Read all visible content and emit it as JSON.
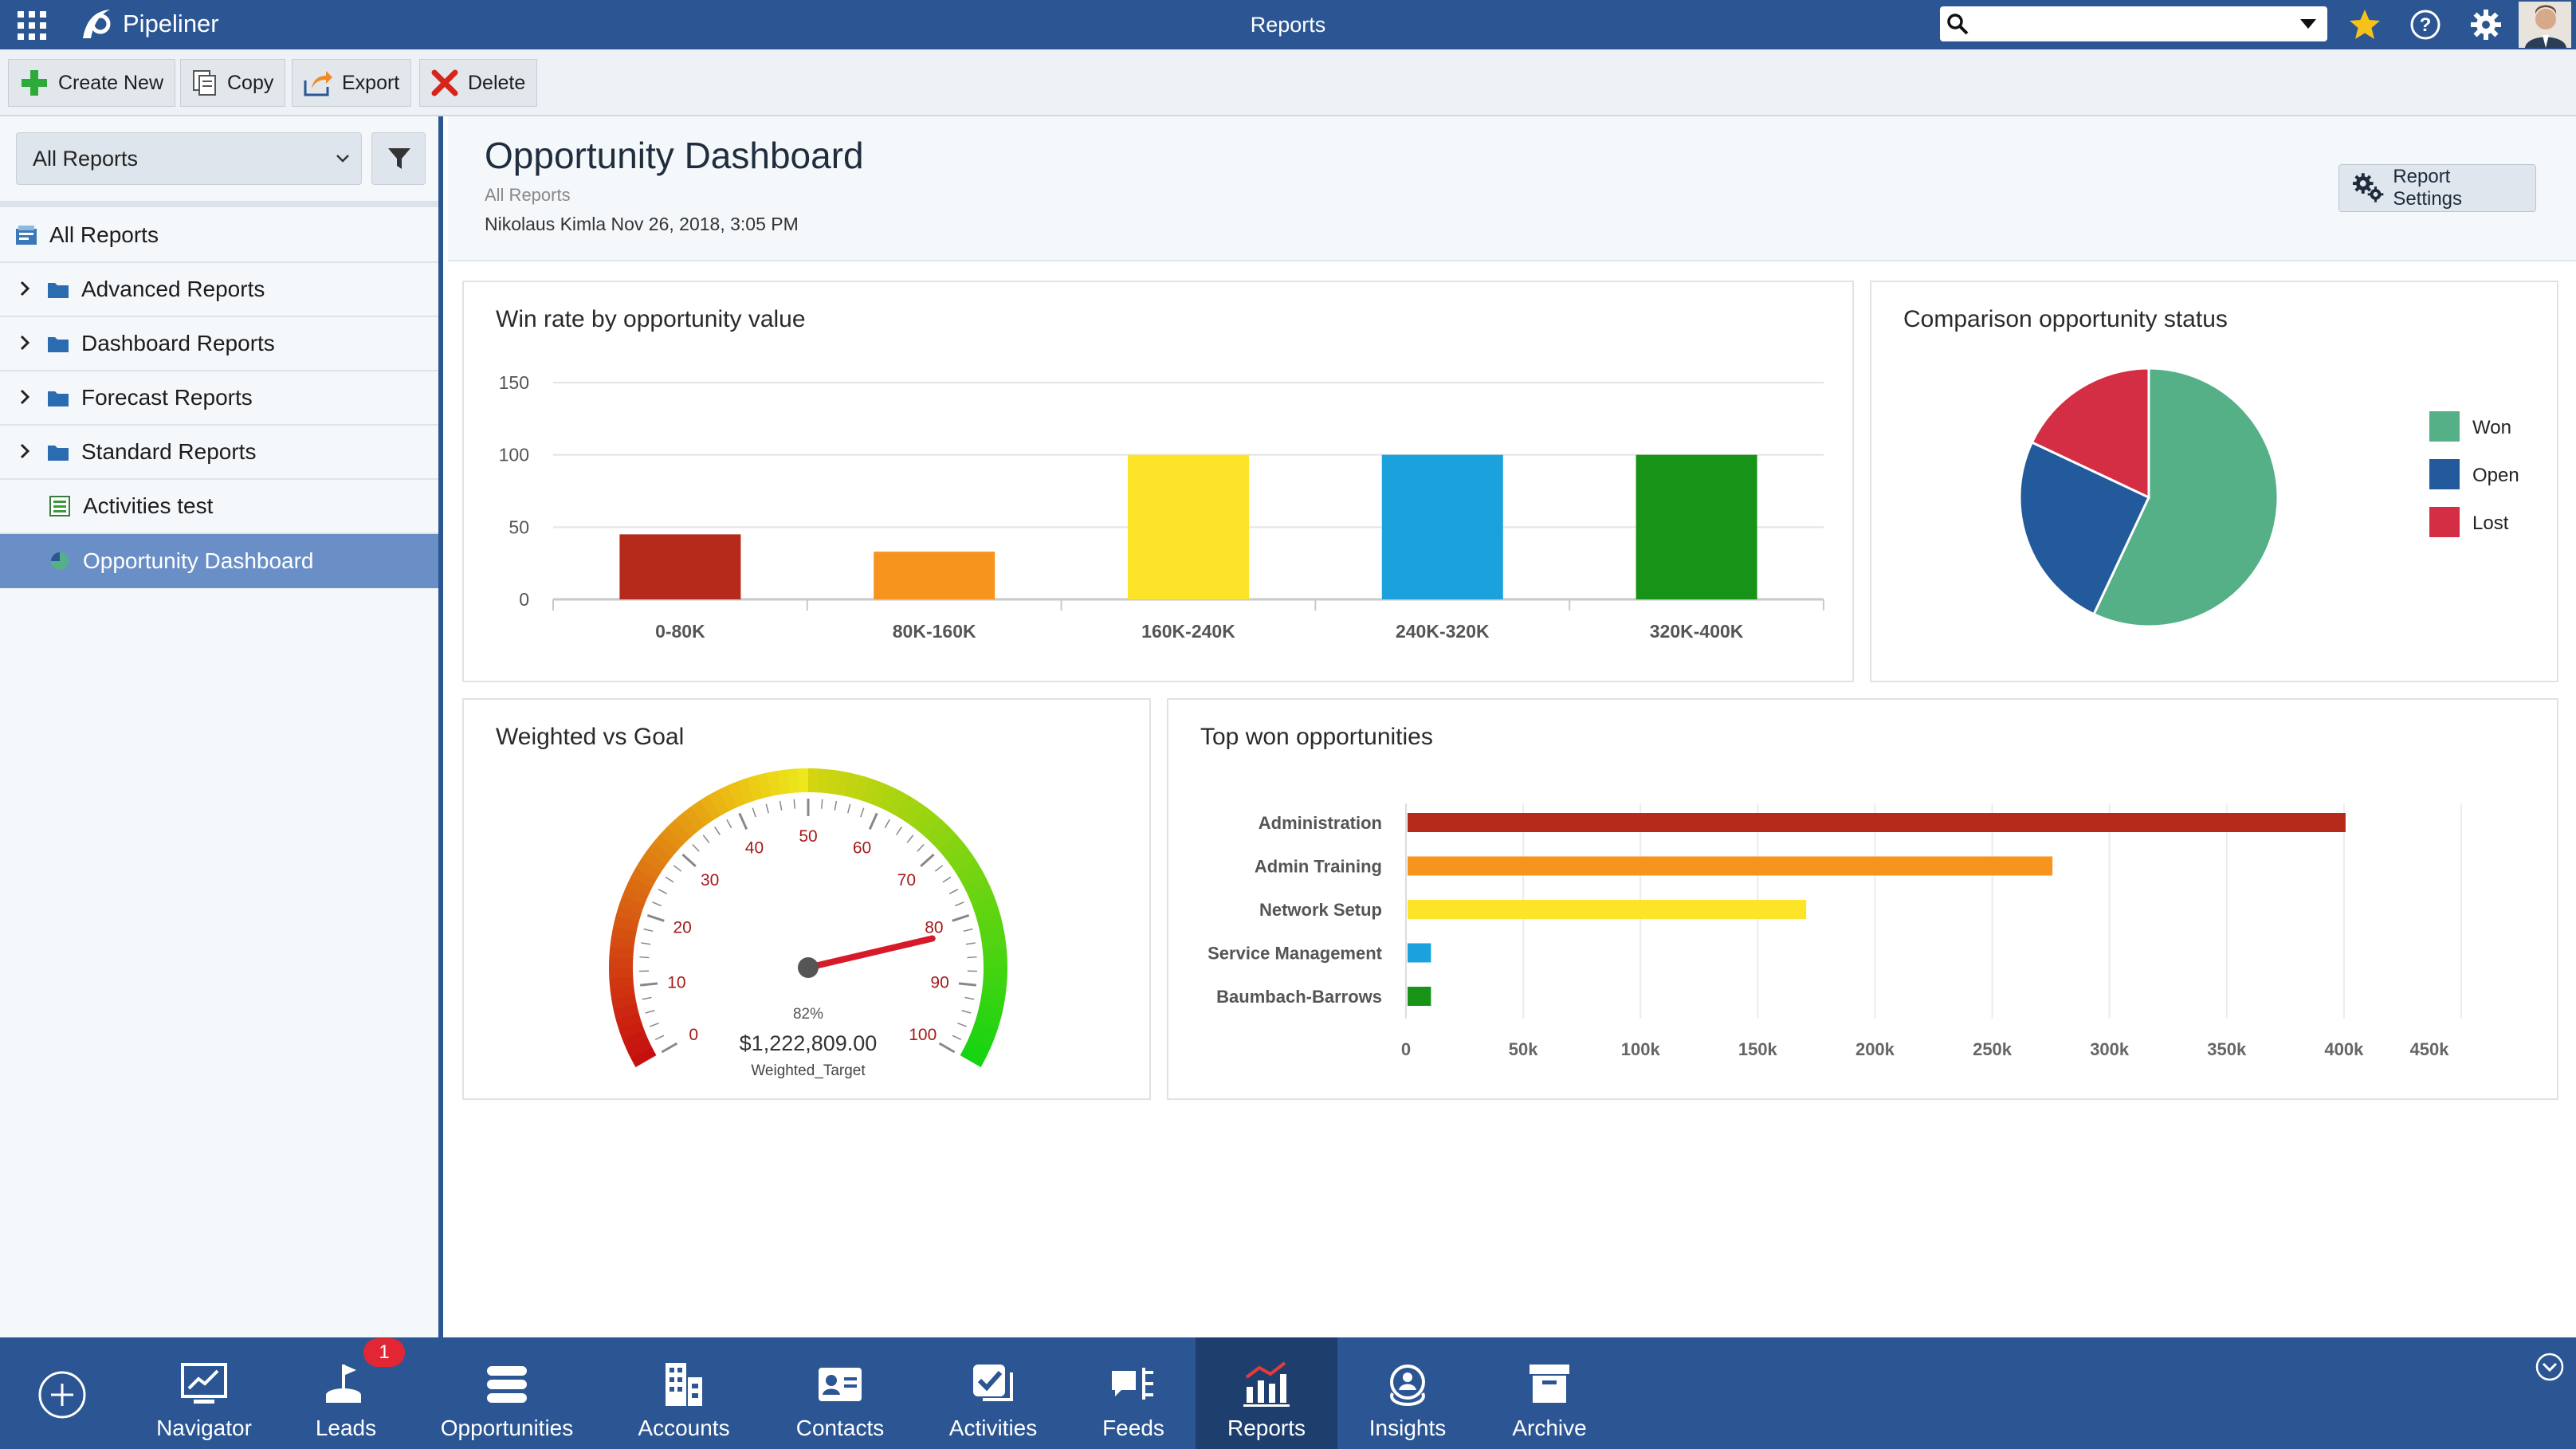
{
  "topbar": {
    "brand": "Pipeliner",
    "title": "Reports",
    "search_placeholder": ""
  },
  "toolbar": {
    "create_new": "Create New",
    "copy": "Copy",
    "export": "Export",
    "delete": "Delete"
  },
  "sidebar": {
    "filter_value": "All Reports",
    "items": [
      {
        "label": "All Reports"
      },
      {
        "label": "Advanced Reports"
      },
      {
        "label": "Dashboard Reports"
      },
      {
        "label": "Forecast Reports"
      },
      {
        "label": "Standard Reports"
      },
      {
        "label": "Activities test"
      },
      {
        "label": "Opportunity Dashboard"
      }
    ]
  },
  "header": {
    "title": "Opportunity Dashboard",
    "subtitle": "All Reports",
    "meta": "Nikolaus Kimla Nov 26, 2018, 3:05 PM",
    "settings_label": "Report Settings"
  },
  "chart_data": [
    {
      "type": "bar",
      "title": "Win rate by opportunity value",
      "categories": [
        "0-80K",
        "80K-160K",
        "160K-240K",
        "240K-320K",
        "320K-400K"
      ],
      "values": [
        45,
        33,
        100,
        100,
        100
      ],
      "colors": [
        "#b52a1a",
        "#f7941d",
        "#fde428",
        "#1ba1dc",
        "#179418"
      ],
      "ylim": [
        0,
        150
      ],
      "yticks": [
        0,
        50,
        100,
        150
      ],
      "grid": true
    },
    {
      "type": "pie",
      "title": "Comparison opportunity status",
      "labels": [
        "Won",
        "Open",
        "Lost"
      ],
      "values": [
        57,
        25,
        18
      ],
      "colors": [
        "#55b087",
        "#235a9c",
        "#d42e45"
      ],
      "legend": "right"
    },
    {
      "type": "gauge",
      "title": "Weighted vs Goal",
      "value": 82,
      "min": 0,
      "max": 100,
      "ticks": [
        "0",
        "10",
        "20",
        "30",
        "40",
        "50",
        "60",
        "70",
        "80",
        "90",
        "100"
      ],
      "percent_label": "82%",
      "amount_label": "$1,222,809.00",
      "caption": "Weighted_Target"
    },
    {
      "type": "bar",
      "orientation": "horizontal",
      "title": "Top won opportunities",
      "categories": [
        "Administration",
        "Admin Training",
        "Network Setup",
        "Service Management",
        "Baumbach-Barrows"
      ],
      "values": [
        400000,
        275000,
        170000,
        10000,
        10000
      ],
      "colors": [
        "#b52a1a",
        "#f7941d",
        "#fde428",
        "#1ba1dc",
        "#179418"
      ],
      "xlim": [
        0,
        450000
      ],
      "xticks": [
        "0",
        "50k",
        "100k",
        "150k",
        "200k",
        "250k",
        "300k",
        "350k",
        "400k",
        "450k"
      ],
      "grid": true
    }
  ],
  "bottombar": {
    "items": [
      {
        "label": "Navigator",
        "icon": "navigator-icon"
      },
      {
        "label": "Leads",
        "icon": "leads-icon",
        "badge": "1"
      },
      {
        "label": "Opportunities",
        "icon": "opportunities-icon"
      },
      {
        "label": "Accounts",
        "icon": "accounts-icon"
      },
      {
        "label": "Contacts",
        "icon": "contacts-icon"
      },
      {
        "label": "Activities",
        "icon": "activities-icon"
      },
      {
        "label": "Feeds",
        "icon": "feeds-icon"
      },
      {
        "label": "Reports",
        "icon": "reports-icon"
      },
      {
        "label": "Insights",
        "icon": "insights-icon"
      },
      {
        "label": "Archive",
        "icon": "archive-icon"
      }
    ]
  }
}
